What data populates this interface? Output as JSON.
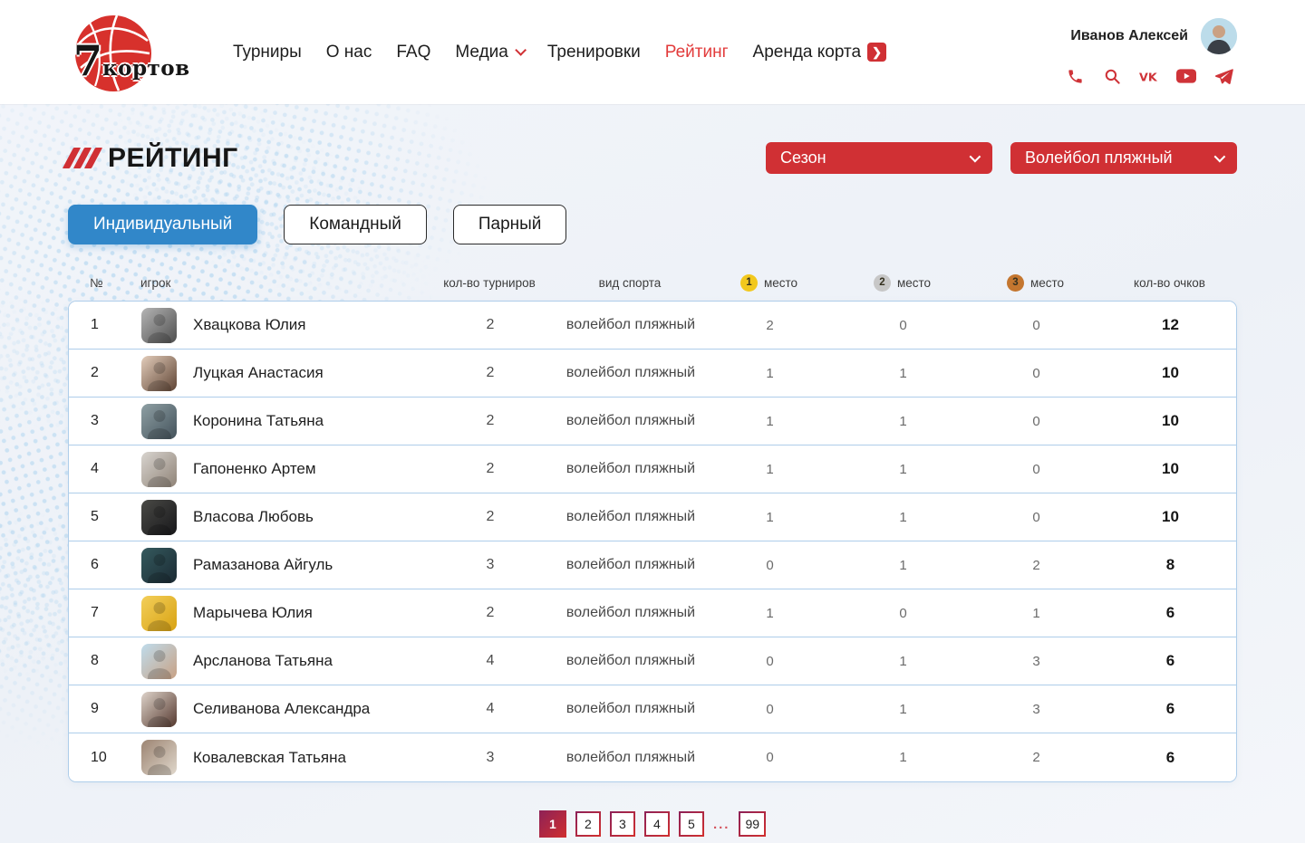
{
  "colors": {
    "accent_red": "#d03034",
    "nav_active_red": "#e23b3b",
    "tab_active_blue": "#3187c9",
    "gold": "#f2c81d",
    "silver": "#c7c7c7",
    "bronze": "#c4762f",
    "table_border": "#aecdea",
    "pagination_gradient_start": "#8e2157",
    "pagination_gradient_end": "#d02f2f",
    "background": "#eff3f8",
    "halftone_dot": "#a9d2ef"
  },
  "header": {
    "logo": {
      "number": "7",
      "word": "кортов"
    },
    "nav": [
      {
        "id": "tournaments",
        "label": "Турниры"
      },
      {
        "id": "about",
        "label": "О нас"
      },
      {
        "id": "faq",
        "label": "FAQ"
      },
      {
        "id": "media",
        "label": "Медиа",
        "chevron": true
      },
      {
        "id": "trainings",
        "label": "Тренировки"
      },
      {
        "id": "rating",
        "label": "Рейтинг",
        "active": true
      },
      {
        "id": "court-rent",
        "label": "Аренда корта",
        "arrow_badge": true
      }
    ],
    "user": {
      "name": "Иванов Алексей"
    },
    "social_icons": [
      "phone-icon",
      "search-icon",
      "vk-icon",
      "youtube-icon",
      "telegram-icon"
    ]
  },
  "page": {
    "title": "РЕЙТИНГ",
    "filters": {
      "season_label": "Сезон",
      "sport_label": "Волейбол пляжный"
    },
    "tabs": [
      {
        "id": "individual",
        "label": "Индивидуальный",
        "active": true
      },
      {
        "id": "team",
        "label": "Командный",
        "active": false
      },
      {
        "id": "pair",
        "label": "Парный",
        "active": false
      }
    ]
  },
  "table": {
    "columns": {
      "num": "№",
      "player": "игрок",
      "tournaments": "кол-во турниров",
      "sport": "вид спорта",
      "place1_badge": "1",
      "place1": "место",
      "place2_badge": "2",
      "place2": "место",
      "place3_badge": "3",
      "place3": "место",
      "points": "кол-во очков"
    },
    "rows": [
      {
        "num": "1",
        "player": "Хвацкова Юлия",
        "tournaments": "2",
        "sport": "волейбол пляжный",
        "first": "2",
        "second": "0",
        "third": "0",
        "points": "12",
        "avatar_colors": [
          "#b5b5b5",
          "#4e4e4e"
        ]
      },
      {
        "num": "2",
        "player": "Луцкая Анастасия",
        "tournaments": "2",
        "sport": "волейбол пляжный",
        "first": "1",
        "second": "1",
        "third": "0",
        "points": "10",
        "avatar_colors": [
          "#e3cdbb",
          "#5f4434"
        ]
      },
      {
        "num": "3",
        "player": "Коронина Татьяна",
        "tournaments": "2",
        "sport": "волейбол пляжный",
        "first": "1",
        "second": "1",
        "third": "0",
        "points": "10",
        "avatar_colors": [
          "#8fa0a4",
          "#43525b"
        ]
      },
      {
        "num": "4",
        "player": "Гапоненко Артем",
        "tournaments": "2",
        "sport": "волейбол пляжный",
        "first": "1",
        "second": "1",
        "third": "0",
        "points": "10",
        "avatar_colors": [
          "#d8d4cf",
          "#8f8377"
        ]
      },
      {
        "num": "5",
        "player": "Власова Любовь",
        "tournaments": "2",
        "sport": "волейбол пляжный",
        "first": "1",
        "second": "1",
        "third": "0",
        "points": "10",
        "avatar_colors": [
          "#4a4a46",
          "#17171a"
        ]
      },
      {
        "num": "6",
        "player": "Рамазанова Айгуль",
        "tournaments": "3",
        "sport": "волейбол пляжный",
        "first": "0",
        "second": "1",
        "third": "2",
        "points": "8",
        "avatar_colors": [
          "#355a5e",
          "#1b2a33"
        ]
      },
      {
        "num": "7",
        "player": "Марычева Юлия",
        "tournaments": "2",
        "sport": "волейбол пляжный",
        "first": "1",
        "second": "0",
        "third": "1",
        "points": "6",
        "avatar_colors": [
          "#f3cf5a",
          "#d8a212"
        ]
      },
      {
        "num": "8",
        "player": "Арсланова Татьяна",
        "tournaments": "4",
        "sport": "волейбол пляжный",
        "first": "0",
        "second": "1",
        "third": "3",
        "points": "6",
        "avatar_colors": [
          "#bfdcec",
          "#c8a184"
        ]
      },
      {
        "num": "9",
        "player": "Селиванова Александра",
        "tournaments": "4",
        "sport": "волейбол пляжный",
        "first": "0",
        "second": "1",
        "third": "3",
        "points": "6",
        "avatar_colors": [
          "#ded3ca",
          "#55392f"
        ]
      },
      {
        "num": "10",
        "player": "Ковалевская Татьяна",
        "tournaments": "3",
        "sport": "волейбол пляжный",
        "first": "0",
        "second": "1",
        "third": "2",
        "points": "6",
        "avatar_colors": [
          "#9c8472",
          "#e0d8cc"
        ]
      }
    ]
  },
  "pagination": {
    "items": [
      {
        "label": "1",
        "active": true
      },
      {
        "label": "2"
      },
      {
        "label": "3"
      },
      {
        "label": "4"
      },
      {
        "label": "5"
      },
      {
        "label": "...",
        "ellipsis": true
      },
      {
        "label": "99"
      }
    ]
  }
}
